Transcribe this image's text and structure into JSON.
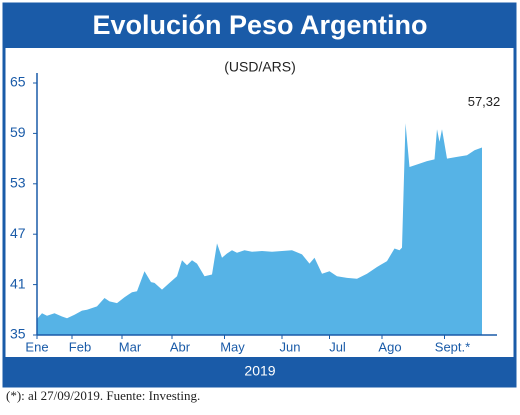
{
  "chart_data": {
    "type": "area",
    "title": "Evolución Peso Argentino",
    "subtitle": "(USD/ARS)",
    "x_label": "2019",
    "footnote": "(*): al 27/09/2019. Fuente: Investing.",
    "color": "#56b3e6",
    "x": [
      0,
      0.1,
      0.2,
      0.35,
      0.5,
      0.6,
      0.75,
      0.9,
      1.0,
      1.2,
      1.35,
      1.45,
      1.6,
      1.75,
      1.9,
      2.0,
      2.15,
      2.28,
      2.35,
      2.5,
      2.65,
      2.8,
      2.9,
      3.0,
      3.1,
      3.2,
      3.35,
      3.5,
      3.6,
      3.7,
      3.8,
      3.9,
      4.0,
      4.15,
      4.3,
      4.5,
      4.7,
      4.9,
      5.1,
      5.3,
      5.45,
      5.55,
      5.7,
      5.85,
      6.0,
      6.2,
      6.4,
      6.6,
      6.8,
      7.0,
      7.15,
      7.25,
      7.3,
      7.37,
      7.45,
      7.6,
      7.8,
      7.95,
      8.0,
      8.05,
      8.1,
      8.2,
      8.4,
      8.6,
      8.75,
      8.9
    ],
    "series": [
      {
        "name": "USD/ARS",
        "values": [
          36.9,
          37.6,
          37.3,
          37.6,
          37.2,
          37.0,
          37.4,
          37.9,
          38.0,
          38.4,
          39.4,
          39.0,
          38.8,
          39.5,
          40.1,
          40.2,
          42.6,
          41.3,
          41.2,
          40.4,
          41.2,
          42.0,
          43.9,
          43.3,
          43.9,
          43.5,
          42.0,
          42.2,
          45.9,
          44.2,
          44.7,
          45.1,
          44.8,
          45.1,
          44.9,
          45.0,
          44.9,
          45.0,
          45.1,
          44.6,
          43.5,
          44.2,
          42.3,
          42.6,
          42.0,
          41.8,
          41.7,
          42.3,
          43.1,
          43.8,
          45.3,
          45.1,
          45.4,
          60.2,
          55.0,
          55.3,
          55.7,
          55.9,
          59.5,
          58.0,
          59.5,
          56.0,
          56.2,
          56.4,
          57.0,
          57.32
        ],
        "value_labels": [
          null,
          null,
          null,
          null,
          null,
          null,
          null,
          null,
          null,
          null,
          null,
          null,
          null,
          null,
          null,
          null,
          null,
          null,
          null,
          null,
          null,
          null,
          null,
          null,
          null,
          null,
          null,
          null,
          null,
          null,
          null,
          null,
          null,
          null,
          null,
          null,
          null,
          null,
          null,
          null,
          null,
          null,
          null,
          null,
          null,
          null,
          null,
          null,
          null,
          null,
          null,
          null,
          null,
          null,
          null,
          null,
          null,
          null,
          null,
          null,
          null,
          null,
          null,
          null,
          null,
          "57,32"
        ]
      }
    ],
    "xlim": [
      0,
      9
    ],
    "xticks": [
      {
        "value": 0,
        "label": "Ene"
      },
      {
        "value": 0.7,
        "label": "Feb"
      },
      {
        "value": 1.7,
        "label": "Mar"
      },
      {
        "value": 2.7,
        "label": "Abr"
      },
      {
        "value": 3.75,
        "label": "May"
      },
      {
        "value": 4.9,
        "label": "Jun"
      },
      {
        "value": 5.85,
        "label": "Jul"
      },
      {
        "value": 6.9,
        "label": "Ago"
      },
      {
        "value": 8.15,
        "label": "Sept.*"
      }
    ],
    "ylim": [
      35,
      65
    ],
    "yticks": [
      35,
      41,
      47,
      53,
      59,
      65
    ]
  }
}
